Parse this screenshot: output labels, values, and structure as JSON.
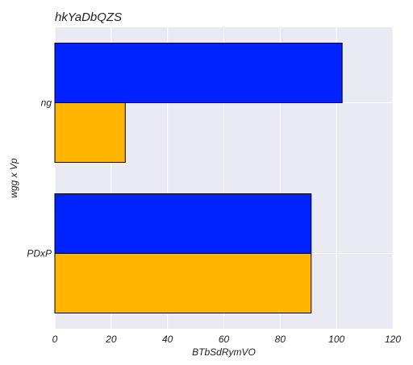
{
  "chart_data": {
    "type": "bar",
    "orientation": "horizontal",
    "title": "hkYaDbQZS",
    "xlabel": "BTbSdRymVO",
    "ylabel": "wgg x Vp",
    "categories": [
      "ng",
      "PDxP"
    ],
    "series": [
      {
        "values": [
          102,
          91
        ],
        "color": "#0022ff"
      },
      {
        "values": [
          25,
          91
        ],
        "color": "#ffb400"
      }
    ],
    "xlim": [
      0,
      120
    ],
    "xticks": [
      0,
      20,
      40,
      60,
      80,
      100,
      120
    ],
    "grid": true,
    "background": "#eaeaf2"
  }
}
